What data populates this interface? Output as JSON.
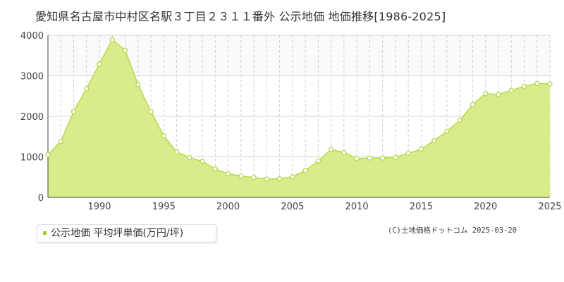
{
  "chart_data": {
    "type": "area",
    "title": "愛知県名古屋市中村区名駅３丁目２３１１番外 公示地価 地価推移[1986-2025]",
    "x": [
      1986,
      1987,
      1988,
      1989,
      1990,
      1991,
      1992,
      1993,
      1994,
      1995,
      1996,
      1997,
      1998,
      1999,
      2000,
      2001,
      2002,
      2003,
      2004,
      2005,
      2006,
      2007,
      2008,
      2009,
      2010,
      2011,
      2012,
      2013,
      2014,
      2015,
      2016,
      2017,
      2018,
      2019,
      2020,
      2021,
      2022,
      2023,
      2024,
      2025
    ],
    "series": [
      {
        "name": "公示地価 平均坪単価(万円/坪)",
        "values": [
          1050,
          1380,
          2120,
          2680,
          3290,
          3890,
          3630,
          2780,
          2120,
          1520,
          1120,
          980,
          890,
          700,
          580,
          530,
          490,
          450,
          460,
          510,
          660,
          900,
          1180,
          1110,
          960,
          970,
          970,
          990,
          1090,
          1190,
          1400,
          1630,
          1900,
          2290,
          2560,
          2540,
          2640,
          2740,
          2810,
          2800
        ]
      }
    ],
    "y_ticks": [
      0,
      1000,
      2000,
      3000,
      4000
    ],
    "x_ticks": [
      1990,
      1995,
      2000,
      2005,
      2010,
      2015,
      2020,
      2025
    ],
    "xlim": [
      1986,
      2025
    ],
    "ylim": [
      0,
      4000
    ],
    "grid": true,
    "legend_position": "bottom-left",
    "colors": {
      "fill": "#d9ec8c",
      "line": "#b5d94a",
      "marker_stroke": "#b5d94a",
      "marker_fill": "#ffffff",
      "legend": "#9acd32"
    }
  },
  "source_note": "(C)土地価格ドットコム 2025-03-20"
}
